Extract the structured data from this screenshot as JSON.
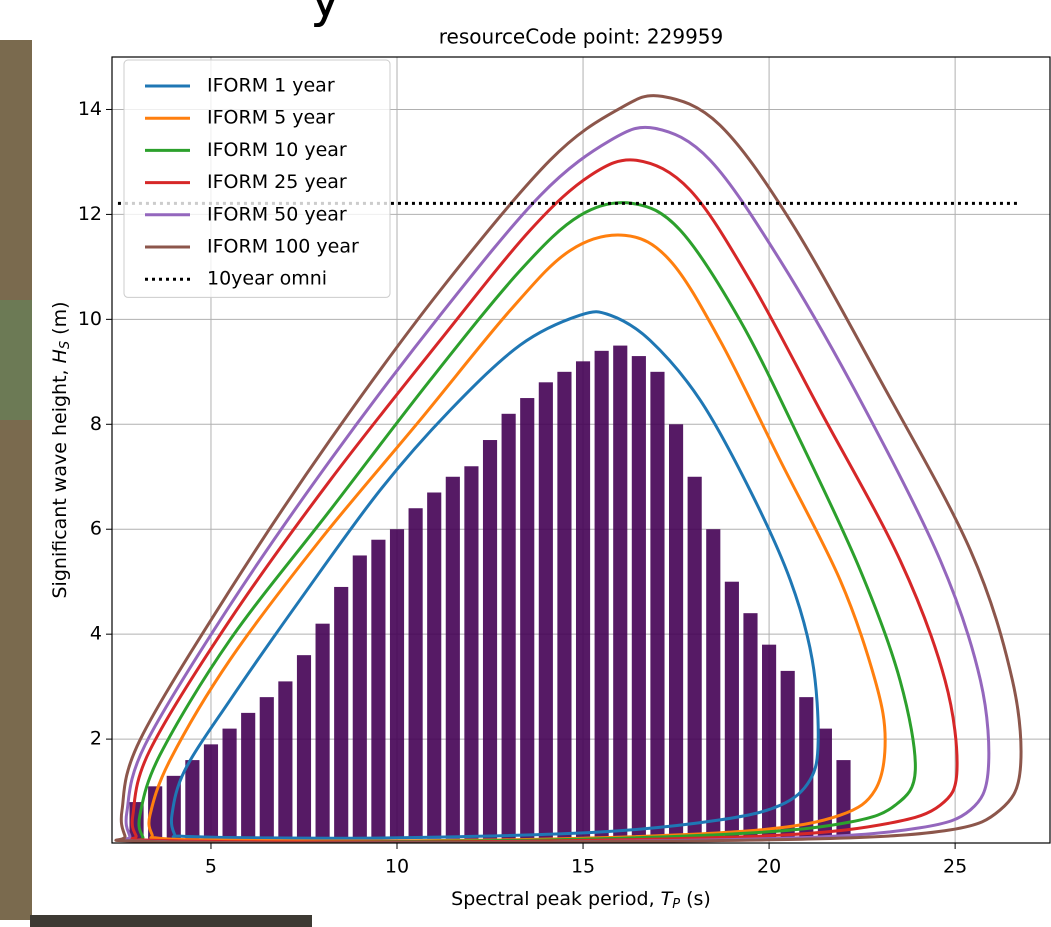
{
  "background_text": "y",
  "chart_data": {
    "type": "contour",
    "title": "resourceCode point: 229959",
    "xlabel": {
      "text": "Spectral peak period, ",
      "symbol": "T",
      "subscript": "P",
      "unit": "(s)"
    },
    "ylabel": {
      "text": "Significant wave height, ",
      "symbol": "H",
      "subscript": "S",
      "unit": "(m)"
    },
    "xlim": [
      2.34,
      27.55
    ],
    "ylim": [
      0.02,
      15.0
    ],
    "xticks": [
      5,
      10,
      15,
      20,
      25
    ],
    "yticks": [
      2,
      4,
      6,
      8,
      10,
      12,
      14
    ],
    "grid": true,
    "legend": "upper left",
    "density": {
      "color": "#440154",
      "x": [
        3.0,
        3.5,
        4.0,
        4.5,
        5.0,
        5.5,
        6.0,
        6.5,
        7.0,
        7.5,
        8.0,
        8.5,
        9.0,
        9.5,
        10.0,
        10.5,
        11.0,
        11.5,
        12.0,
        12.5,
        13.0,
        13.5,
        14.0,
        14.5,
        15.0,
        15.5,
        16.0,
        16.5,
        17.0,
        17.5,
        18.0,
        18.5,
        19.0,
        19.5,
        20.0,
        20.5,
        21.0,
        21.5,
        22.0
      ],
      "hs_max": [
        0.8,
        1.1,
        1.3,
        1.6,
        1.9,
        2.2,
        2.5,
        2.8,
        3.1,
        3.6,
        4.2,
        4.9,
        5.5,
        5.8,
        6.0,
        6.4,
        6.7,
        7.0,
        7.2,
        7.7,
        8.2,
        8.5,
        8.8,
        9.0,
        9.2,
        9.4,
        9.5,
        9.3,
        9.0,
        8.0,
        7.0,
        6.0,
        5.0,
        4.4,
        3.8,
        3.3,
        2.8,
        2.2,
        1.6
      ],
      "hs_min": 0.1
    },
    "series": [
      {
        "name": "IFORM 1 year",
        "color": "#1f77b4",
        "closed": true,
        "x": [
          4.03,
          3.95,
          4.3,
          5.51,
          7.39,
          9.54,
          11.43,
          13.31,
          14.92,
          15.73,
          16.8,
          18.15,
          19.49,
          20.57,
          21.16,
          21.32,
          21.1,
          20.3,
          18.68,
          15.46,
          10.08,
          6.05,
          4.17
        ],
        "y": [
          0.17,
          0.55,
          1.41,
          2.74,
          4.65,
          6.74,
          8.27,
          9.51,
          10.08,
          10.08,
          9.6,
          8.46,
          6.74,
          5.03,
          3.51,
          1.98,
          1.22,
          0.74,
          0.46,
          0.23,
          0.12,
          0.12,
          0.15
        ]
      },
      {
        "name": "IFORM 5 year",
        "color": "#ff7f0e",
        "closed": true,
        "x": [
          3.42,
          3.36,
          3.9,
          5.51,
          7.93,
          10.62,
          13.04,
          14.65,
          16.13,
          17.34,
          18.68,
          20.3,
          21.91,
          22.85,
          23.12,
          22.85,
          21.91,
          19.76,
          15.46,
          10.08,
          4.71,
          3.5
        ],
        "y": [
          0.17,
          0.55,
          1.6,
          3.51,
          5.79,
          8.08,
          10.17,
          11.31,
          11.6,
          11.12,
          9.6,
          7.31,
          5.03,
          3.12,
          1.98,
          1.03,
          0.55,
          0.27,
          0.12,
          0.06,
          0.08,
          0.12
        ]
      },
      {
        "name": "IFORM 10 year",
        "color": "#2ca02c",
        "closed": true,
        "x": [
          3.17,
          3.09,
          3.63,
          5.51,
          8.2,
          10.89,
          13.31,
          14.92,
          16.32,
          17.61,
          19.22,
          20.83,
          22.45,
          23.52,
          23.93,
          23.39,
          22.18,
          19.49,
          14.11,
          7.39,
          3.36
        ],
        "y": [
          0.13,
          0.55,
          1.7,
          3.89,
          6.36,
          8.84,
          10.93,
          11.98,
          12.21,
          11.7,
          9.98,
          7.7,
          5.22,
          3.12,
          1.41,
          0.74,
          0.42,
          0.21,
          0.08,
          0.04,
          0.06
        ]
      },
      {
        "name": "IFORM 25 year",
        "color": "#d62728",
        "closed": true,
        "x": [
          2.99,
          2.9,
          3.36,
          5.51,
          8.2,
          11.16,
          13.58,
          15.19,
          16.45,
          17.88,
          19.49,
          21.37,
          23.52,
          24.73,
          25.05,
          24.6,
          23.25,
          20.3,
          14.11,
          7.39,
          3.09
        ],
        "y": [
          0.15,
          0.55,
          1.79,
          4.27,
          6.93,
          9.6,
          11.7,
          12.74,
          13.03,
          12.46,
          10.74,
          8.27,
          5.41,
          3.12,
          1.41,
          0.74,
          0.4,
          0.17,
          0.06,
          0.04,
          0.08
        ]
      },
      {
        "name": "IFORM 50 year",
        "color": "#9467bd",
        "closed": true,
        "x": [
          2.82,
          2.74,
          3.23,
          5.51,
          8.2,
          11.16,
          13.85,
          15.73,
          16.94,
          18.42,
          20.3,
          22.45,
          24.6,
          25.68,
          25.89,
          25.41,
          24.06,
          20.83,
          14.11,
          7.39,
          2.96
        ],
        "y": [
          0.15,
          0.61,
          1.89,
          4.55,
          7.31,
          10.08,
          12.36,
          13.41,
          13.64,
          13.03,
          11.12,
          8.46,
          5.41,
          3.12,
          1.41,
          0.65,
          0.31,
          0.12,
          0.04,
          0.02,
          0.06
        ]
      },
      {
        "name": "IFORM 100 year",
        "color": "#8c564b",
        "closed": true,
        "x": [
          2.69,
          2.61,
          3.09,
          5.51,
          8.2,
          11.16,
          14.11,
          15.99,
          17.13,
          18.68,
          20.57,
          22.99,
          25.41,
          26.54,
          26.75,
          26.21,
          24.87,
          21.37,
          14.11,
          7.39,
          2.82
        ],
        "y": [
          0.15,
          0.65,
          1.98,
          4.84,
          7.7,
          10.55,
          13.03,
          14.02,
          14.25,
          13.7,
          11.88,
          8.84,
          5.6,
          3.12,
          1.41,
          0.65,
          0.27,
          0.1,
          0.04,
          0.02,
          0.06
        ]
      },
      {
        "name": "10year omni",
        "color": "#000000",
        "closed": false,
        "dash": "dotted",
        "x": [
          2.5,
          26.75
        ],
        "y": [
          12.21,
          12.21
        ]
      }
    ]
  }
}
